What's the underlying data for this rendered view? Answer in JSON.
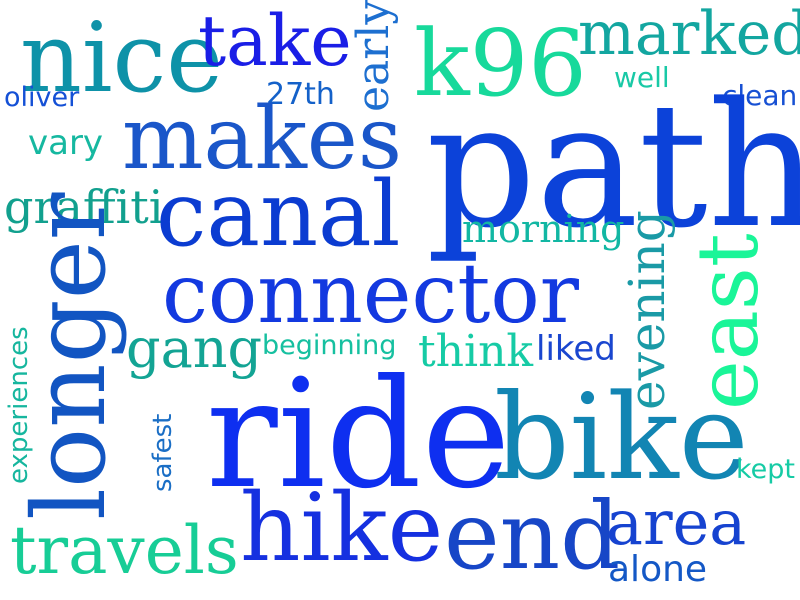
{
  "cloud": {
    "words": [
      {
        "text": "nice",
        "color": "#0e92a8"
      },
      {
        "text": "take",
        "color": "#1a1ee6"
      },
      {
        "text": "early",
        "color": "#1d6fd0"
      },
      {
        "text": "k96",
        "color": "#17d99b"
      },
      {
        "text": "marked",
        "color": "#13a6a0"
      },
      {
        "text": "oliver",
        "color": "#1450d6"
      },
      {
        "text": "27th",
        "color": "#1461c9"
      },
      {
        "text": "well",
        "color": "#19c9a6"
      },
      {
        "text": "clean",
        "color": "#1750d3"
      },
      {
        "text": "makes",
        "color": "#1a56c9"
      },
      {
        "text": "path",
        "color": "#0c42d9"
      },
      {
        "text": "vary",
        "color": "#16b8a0"
      },
      {
        "text": "graffiti",
        "color": "#12a08e"
      },
      {
        "text": "canal",
        "color": "#0b3cd1"
      },
      {
        "text": "morning",
        "color": "#12b7a3"
      },
      {
        "text": "east",
        "color": "#1af598"
      },
      {
        "text": "connector",
        "color": "#1339e0"
      },
      {
        "text": "longer",
        "color": "#1255c2"
      },
      {
        "text": "evening",
        "color": "#1a9aa6"
      },
      {
        "text": "experiences",
        "color": "#16b69e"
      },
      {
        "text": "gang",
        "color": "#13a494"
      },
      {
        "text": "beginning",
        "color": "#16c0a0"
      },
      {
        "text": "think",
        "color": "#16cba5"
      },
      {
        "text": "liked",
        "color": "#1a46cf"
      },
      {
        "text": "safest",
        "color": "#1a6ec5"
      },
      {
        "text": "ride",
        "color": "#0e2ff0"
      },
      {
        "text": "bike",
        "color": "#1285b3"
      },
      {
        "text": "kept",
        "color": "#16cba5"
      },
      {
        "text": "travels",
        "color": "#17cd96"
      },
      {
        "text": "hike",
        "color": "#1530e0"
      },
      {
        "text": "end",
        "color": "#1746c7"
      },
      {
        "text": "area",
        "color": "#1643d0"
      },
      {
        "text": "alone",
        "color": "#1458c6"
      }
    ]
  }
}
